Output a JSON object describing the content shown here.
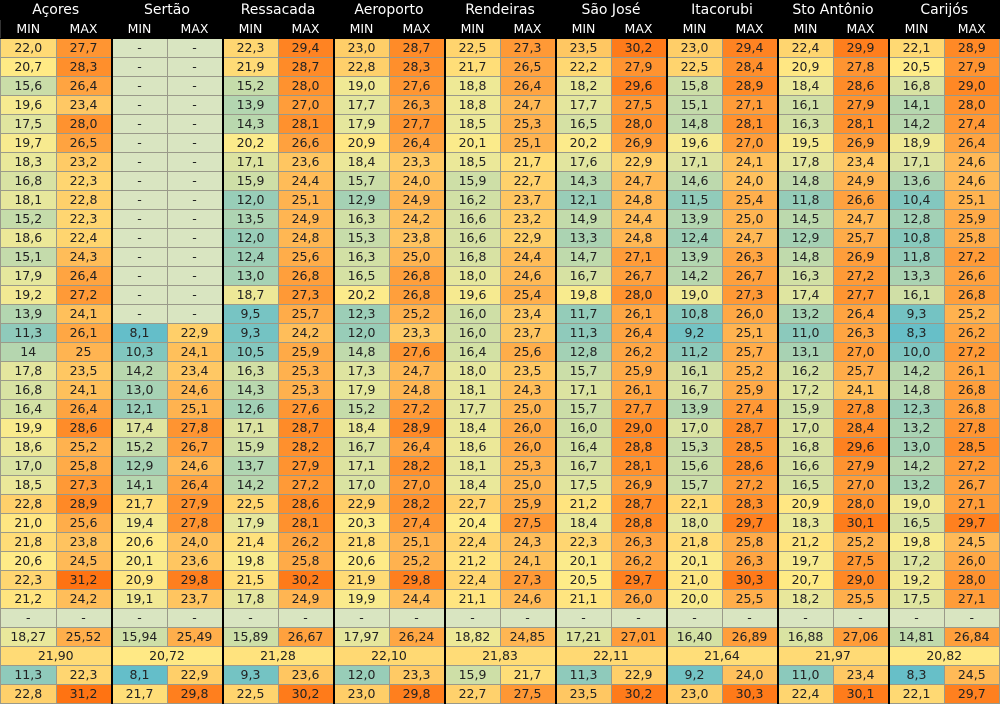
{
  "stations": [
    "Açores",
    "Sertão",
    "Ressacada",
    "Aeroporto",
    "Rendeiras",
    "São José",
    "Itacorubi",
    "Sto Antônio",
    "Carijós"
  ],
  "sub_headers": [
    "MIN",
    "MAX"
  ],
  "rows": [
    [
      "22,0",
      "27,7",
      "-",
      "-",
      "22,3",
      "29,4",
      "23,0",
      "28,7",
      "22,5",
      "27,3",
      "23,5",
      "30,2",
      "23,0",
      "29,4",
      "22,4",
      "29,9",
      "22,1",
      "28,9"
    ],
    [
      "20,7",
      "28,3",
      "-",
      "-",
      "21,9",
      "28,7",
      "22,8",
      "28,3",
      "21,7",
      "26,5",
      "22,2",
      "27,9",
      "22,5",
      "28,4",
      "20,9",
      "27,8",
      "20,5",
      "27,9"
    ],
    [
      "15,6",
      "26,4",
      "-",
      "-",
      "15,2",
      "28,0",
      "19,0",
      "27,6",
      "18,8",
      "26,4",
      "18,2",
      "29,6",
      "15,8",
      "28,9",
      "18,4",
      "28,6",
      "16,8",
      "29,0"
    ],
    [
      "19,6",
      "23,4",
      "-",
      "-",
      "13,9",
      "27,0",
      "17,7",
      "26,3",
      "18,8",
      "24,7",
      "17,7",
      "27,5",
      "15,1",
      "27,1",
      "16,1",
      "27,9",
      "14,1",
      "28,0"
    ],
    [
      "17,5",
      "28,0",
      "-",
      "-",
      "14,3",
      "28,1",
      "17,9",
      "27,7",
      "18,5",
      "25,3",
      "16,5",
      "28,0",
      "14,8",
      "28,1",
      "16,3",
      "28,1",
      "14,2",
      "27,4"
    ],
    [
      "19,7",
      "26,5",
      "-",
      "-",
      "20,2",
      "26,6",
      "20,9",
      "26,4",
      "20,1",
      "25,1",
      "20,2",
      "26,9",
      "19,6",
      "27,0",
      "19,5",
      "26,9",
      "18,9",
      "26,4"
    ],
    [
      "18,3",
      "23,2",
      "-",
      "-",
      "17,1",
      "23,6",
      "18,4",
      "23,3",
      "18,5",
      "21,7",
      "17,6",
      "22,9",
      "17,1",
      "24,1",
      "17,8",
      "23,4",
      "17,1",
      "24,6"
    ],
    [
      "16,8",
      "22,3",
      "-",
      "-",
      "15,9",
      "24,4",
      "15,7",
      "24,0",
      "15,9",
      "22,7",
      "14,3",
      "24,7",
      "14,6",
      "24,0",
      "14,8",
      "24,9",
      "13,6",
      "24,6"
    ],
    [
      "18,1",
      "22,8",
      "-",
      "-",
      "12,0",
      "25,1",
      "12,9",
      "24,9",
      "16,2",
      "23,7",
      "12,1",
      "24,8",
      "11,5",
      "25,4",
      "11,8",
      "26,6",
      "10,4",
      "25,1"
    ],
    [
      "15,2",
      "22,3",
      "-",
      "-",
      "13,5",
      "24,9",
      "16,3",
      "24,2",
      "16,6",
      "23,2",
      "14,9",
      "24,4",
      "13,9",
      "25,0",
      "14,5",
      "24,7",
      "12,8",
      "25,9"
    ],
    [
      "18,6",
      "22,4",
      "-",
      "-",
      "12,0",
      "24,8",
      "15,3",
      "23,8",
      "16,6",
      "22,9",
      "13,3",
      "24,8",
      "12,4",
      "24,7",
      "12,9",
      "25,7",
      "10,8",
      "25,8"
    ],
    [
      "15,1",
      "24,3",
      "-",
      "-",
      "12,4",
      "25,6",
      "16,3",
      "25,0",
      "16,8",
      "24,4",
      "14,7",
      "27,1",
      "13,9",
      "26,3",
      "14,8",
      "26,9",
      "11,8",
      "27,2"
    ],
    [
      "17,9",
      "26,4",
      "-",
      "-",
      "13,0",
      "26,8",
      "16,5",
      "26,8",
      "18,0",
      "24,6",
      "16,7",
      "26,7",
      "14,2",
      "26,7",
      "16,3",
      "27,2",
      "13,3",
      "26,6"
    ],
    [
      "19,2",
      "27,2",
      "-",
      "-",
      "18,7",
      "27,3",
      "20,2",
      "26,8",
      "19,6",
      "25,4",
      "19,8",
      "28,0",
      "19,0",
      "27,3",
      "17,4",
      "27,7",
      "16,1",
      "26,8"
    ],
    [
      "13,9",
      "24,1",
      "-",
      "-",
      "9,5",
      "25,7",
      "12,3",
      "25,2",
      "16,0",
      "23,4",
      "11,7",
      "26,1",
      "10,8",
      "26,0",
      "13,2",
      "26,4",
      "9,3",
      "25,2"
    ],
    [
      "11,3",
      "26,1",
      "8,1",
      "22,9",
      "9,3",
      "24,2",
      "12,0",
      "23,3",
      "16,0",
      "23,7",
      "11,3",
      "26,4",
      "9,2",
      "25,1",
      "11,0",
      "26,3",
      "8,3",
      "26,2"
    ],
    [
      "14",
      "25",
      "10,3",
      "24,1",
      "10,5",
      "25,9",
      "14,8",
      "27,6",
      "16,4",
      "25,6",
      "12,8",
      "26,2",
      "11,2",
      "25,7",
      "13,1",
      "27,0",
      "10,0",
      "27,2"
    ],
    [
      "17,8",
      "23,5",
      "14,2",
      "23,4",
      "16,3",
      "25,3",
      "17,3",
      "24,7",
      "18,0",
      "23,5",
      "15,7",
      "25,9",
      "16,1",
      "25,2",
      "16,2",
      "25,7",
      "14,2",
      "26,1"
    ],
    [
      "16,8",
      "24,1",
      "13,0",
      "24,6",
      "14,3",
      "25,3",
      "17,9",
      "24,8",
      "18,1",
      "24,3",
      "17,1",
      "26,1",
      "16,7",
      "25,9",
      "17,2",
      "24,1",
      "14,8",
      "26,8"
    ],
    [
      "16,4",
      "26,4",
      "12,1",
      "25,1",
      "12,6",
      "27,6",
      "15,2",
      "27,2",
      "17,7",
      "25,0",
      "15,7",
      "27,7",
      "13,9",
      "27,4",
      "15,9",
      "27,8",
      "12,3",
      "26,8"
    ],
    [
      "19,9",
      "28,6",
      "17,4",
      "27,8",
      "17,1",
      "28,7",
      "18,4",
      "28,9",
      "18,4",
      "26,0",
      "16,0",
      "29,0",
      "17,0",
      "28,7",
      "17,0",
      "28,4",
      "13,2",
      "27,8"
    ],
    [
      "18,6",
      "25,2",
      "15,2",
      "26,7",
      "15,9",
      "28,2",
      "16,7",
      "26,4",
      "18,6",
      "26,0",
      "16,4",
      "28,8",
      "15,3",
      "28,5",
      "16,8",
      "29,6",
      "13,0",
      "28,5"
    ],
    [
      "17,0",
      "25,8",
      "12,9",
      "24,6",
      "13,7",
      "27,9",
      "17,1",
      "28,2",
      "18,1",
      "25,3",
      "16,7",
      "28,1",
      "15,6",
      "28,6",
      "16,6",
      "27,9",
      "14,2",
      "27,2"
    ],
    [
      "18,5",
      "27,3",
      "14,1",
      "26,4",
      "14,2",
      "27,2",
      "17,0",
      "27,0",
      "18,4",
      "25,0",
      "17,5",
      "26,9",
      "15,7",
      "27,2",
      "16,5",
      "27,0",
      "13,2",
      "26,7"
    ],
    [
      "22,8",
      "28,9",
      "21,7",
      "27,9",
      "22,5",
      "28,6",
      "22,9",
      "28,2",
      "22,7",
      "25,9",
      "21,2",
      "28,7",
      "22,1",
      "28,3",
      "20,9",
      "28,0",
      "19,0",
      "27,1"
    ],
    [
      "21,0",
      "25,6",
      "19,4",
      "27,8",
      "17,9",
      "28,1",
      "20,3",
      "27,4",
      "20,4",
      "27,5",
      "18,4",
      "28,8",
      "18,0",
      "29,7",
      "18,3",
      "30,1",
      "16,5",
      "29,7"
    ],
    [
      "21,8",
      "23,8",
      "20,6",
      "24,0",
      "21,4",
      "26,2",
      "21,8",
      "25,1",
      "22,4",
      "24,3",
      "22,3",
      "26,3",
      "21,8",
      "25,8",
      "21,2",
      "25,2",
      "19,8",
      "24,5"
    ],
    [
      "20,6",
      "24,5",
      "20,1",
      "23,6",
      "19,8",
      "25,8",
      "20,6",
      "25,2",
      "21,2",
      "24,1",
      "20,1",
      "26,2",
      "20,1",
      "26,3",
      "19,7",
      "27,5",
      "17,2",
      "26,0"
    ],
    [
      "22,3",
      "31,2",
      "20,9",
      "29,8",
      "21,5",
      "30,2",
      "21,9",
      "29,8",
      "22,4",
      "27,3",
      "20,5",
      "29,7",
      "21,0",
      "30,3",
      "20,7",
      "29,0",
      "19,2",
      "28,0"
    ],
    [
      "21,2",
      "24,2",
      "19,1",
      "23,7",
      "17,8",
      "24,9",
      "19,9",
      "24,4",
      "21,1",
      "24,6",
      "21,1",
      "26,0",
      "20,0",
      "25,5",
      "18,2",
      "25,5",
      "17,5",
      "27,1"
    ],
    [
      "-",
      "-",
      "-",
      "-",
      "-",
      "-",
      "-",
      "-",
      "-",
      "-",
      "-",
      "-",
      "-",
      "-",
      "-",
      "-",
      "-",
      "-"
    ]
  ],
  "averages": [
    "18,27",
    "25,52",
    "15,94",
    "25,49",
    "15,89",
    "26,67",
    "17,97",
    "26,24",
    "18,82",
    "24,85",
    "17,21",
    "27,01",
    "16,40",
    "26,89",
    "16,88",
    "27,06",
    "14,81",
    "26,84"
  ],
  "overall": [
    "21,90",
    "20,72",
    "21,28",
    "22,10",
    "21,83",
    "22,11",
    "21,64",
    "21,97",
    "20,82"
  ],
  "minimums": [
    "11,3",
    "22,3",
    "8,1",
    "22,9",
    "9,3",
    "23,6",
    "12,0",
    "23,3",
    "15,9",
    "21,7",
    "11,3",
    "22,9",
    "9,2",
    "24,0",
    "11,0",
    "23,4",
    "8,3",
    "24,5"
  ],
  "maximums": [
    "22,8",
    "31,2",
    "21,7",
    "29,8",
    "22,5",
    "30,2",
    "23,0",
    "29,8",
    "22,7",
    "27,5",
    "23,5",
    "30,2",
    "23,0",
    "30,3",
    "22,4",
    "30,1",
    "22,1",
    "29,7"
  ],
  "colors": {
    "empty": "#d9e5c1",
    "scale": [
      [
        8,
        "#63bec9"
      ],
      [
        12,
        "#98cdb8"
      ],
      [
        15,
        "#c3dbab"
      ],
      [
        18,
        "#e6e79d"
      ],
      [
        20.5,
        "#ffec88"
      ],
      [
        22.5,
        "#ffd46e"
      ],
      [
        25,
        "#ffb451"
      ],
      [
        27.5,
        "#ff9734"
      ],
      [
        31,
        "#ff7312"
      ]
    ]
  }
}
